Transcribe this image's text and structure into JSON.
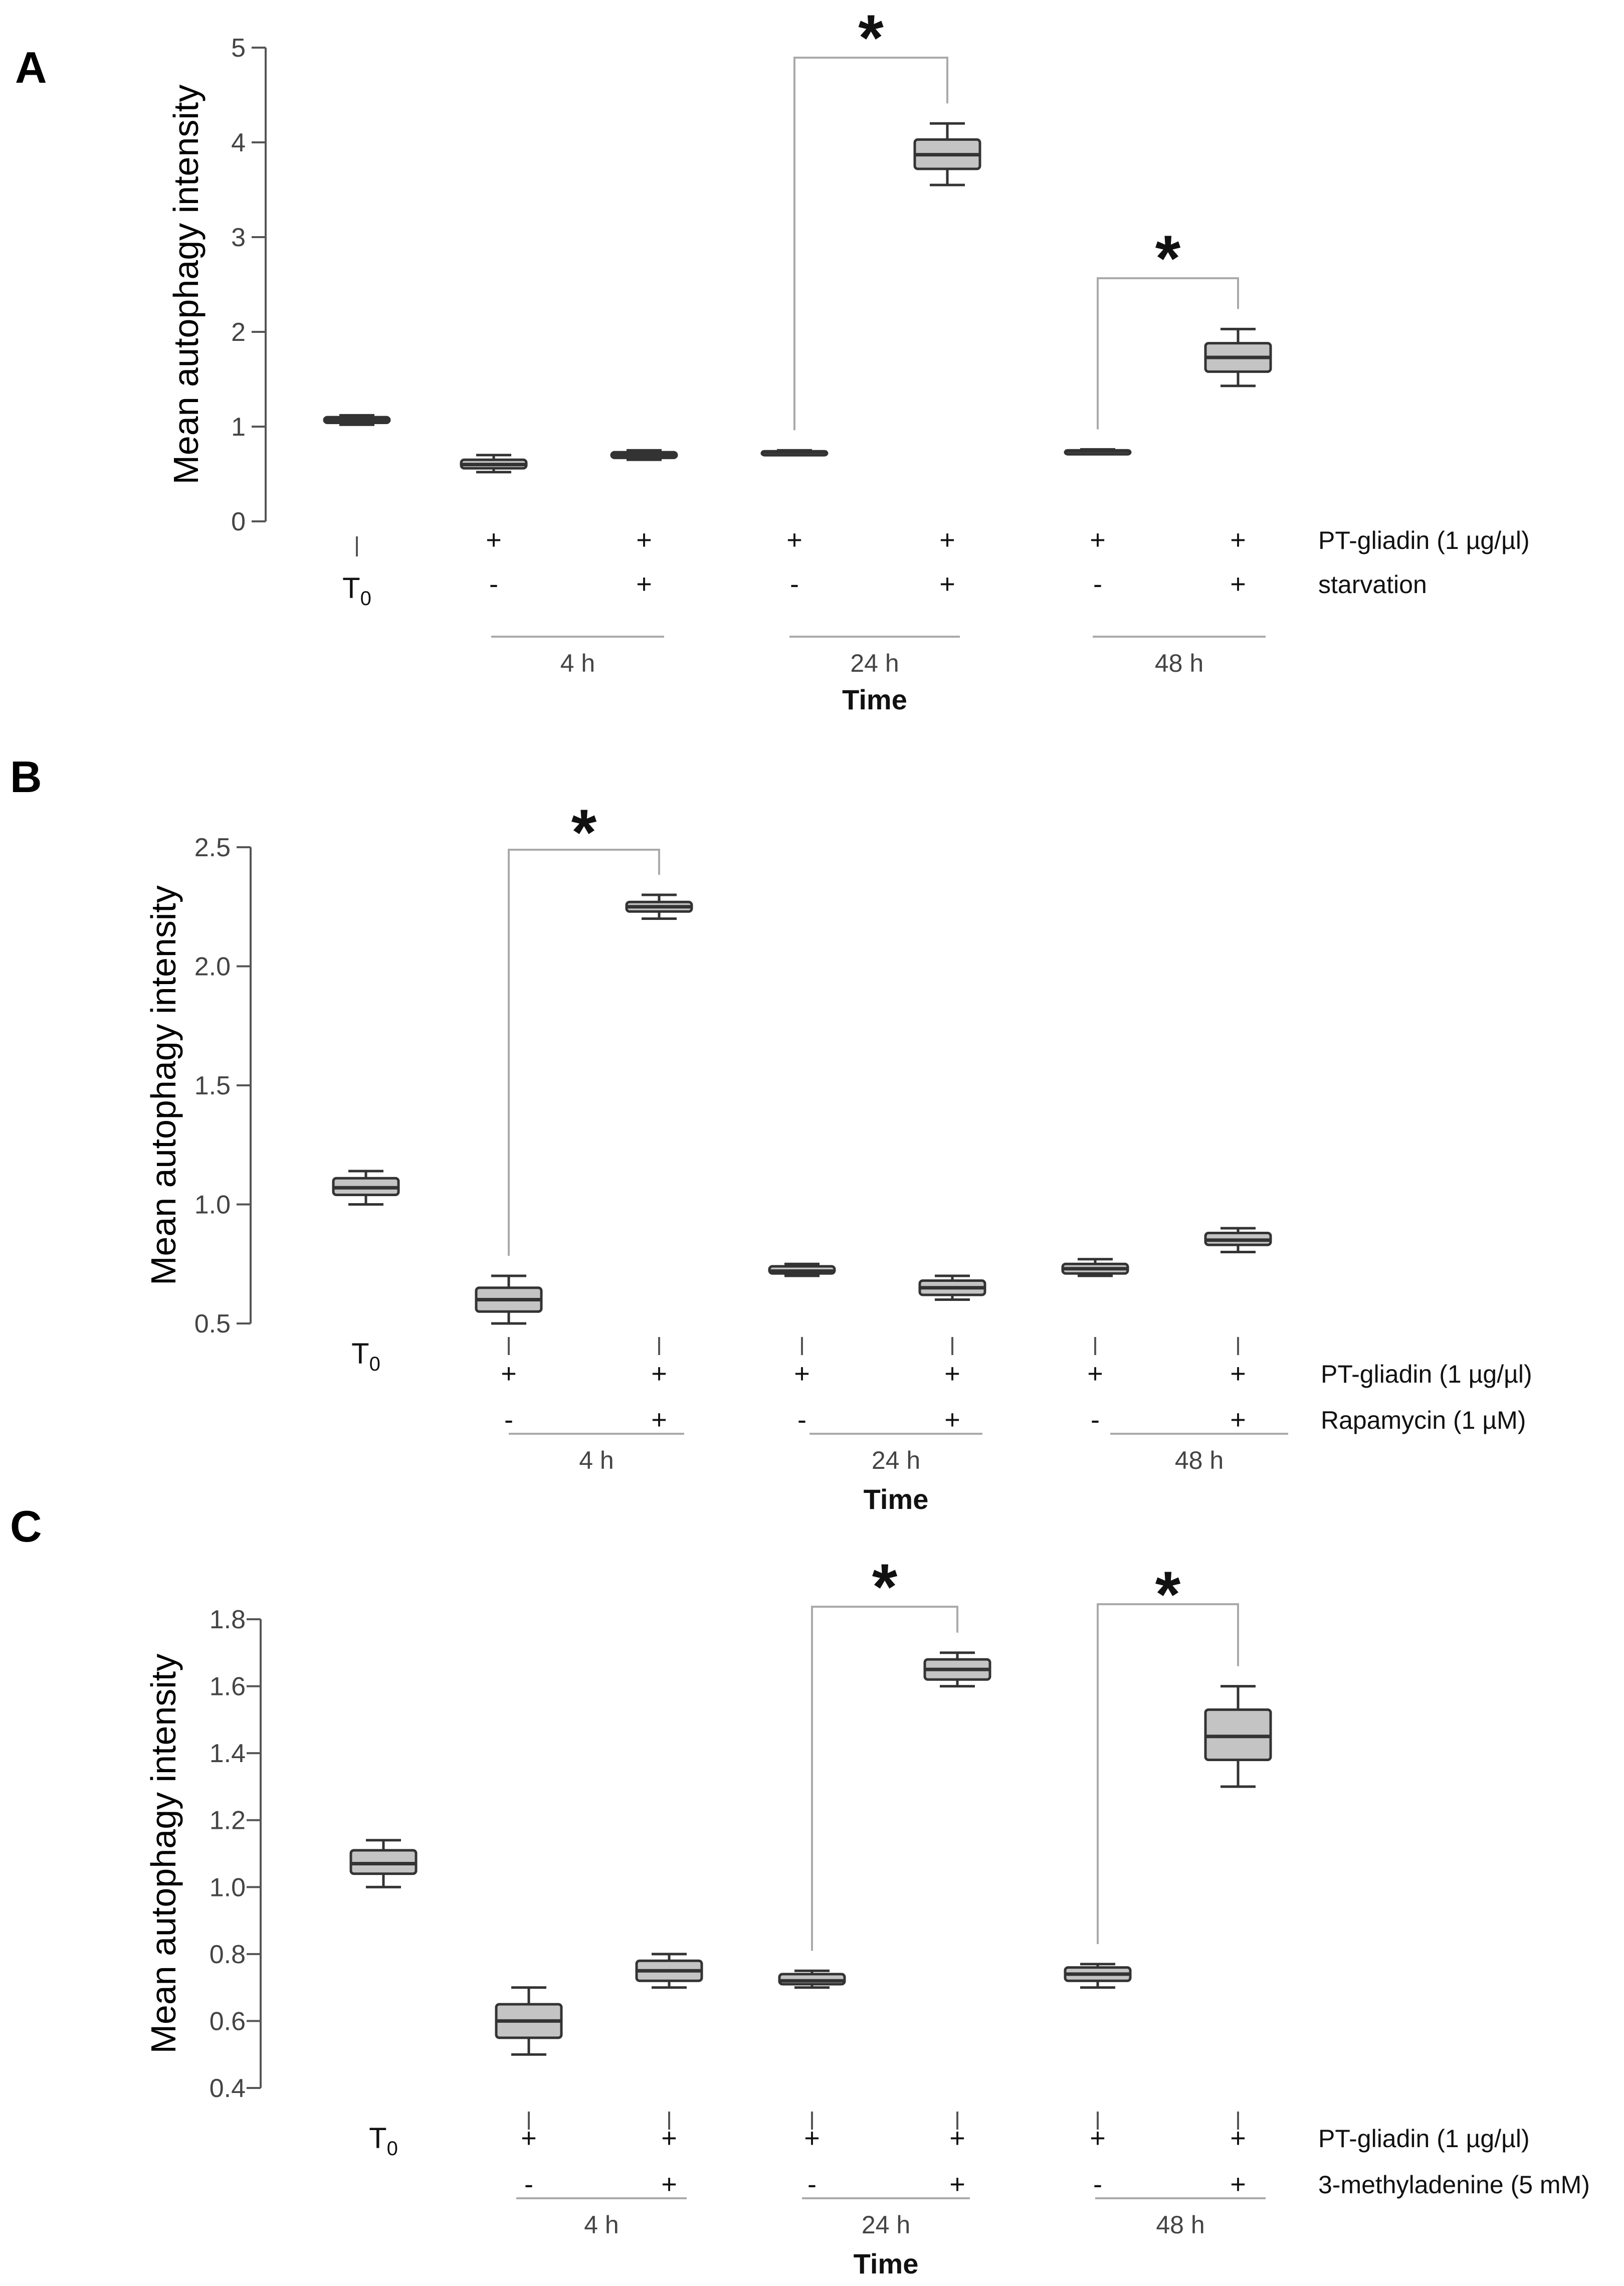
{
  "colors": {
    "box_fill": "#c4c4c4",
    "box_stroke": "#333333",
    "axis": "#555555",
    "bracket": "#aaaaaa"
  },
  "chart_data": [
    {
      "panel": "A",
      "type": "box",
      "ylabel": "Mean autophagy intensity",
      "xlabel": "Time",
      "ylim": [
        0,
        5
      ],
      "yticks": [
        0,
        1,
        2,
        3,
        4,
        5
      ],
      "t0_label": "T",
      "t0_sub": "0",
      "row_labels": [
        "PT-gliadin  (1 µg/µl)",
        "starvation"
      ],
      "time_groups": [
        "4 h",
        "24 h",
        "48 h"
      ],
      "groups": [
        {
          "row1": "",
          "row2": "",
          "min": 1.02,
          "q1": 1.04,
          "median": 1.07,
          "q3": 1.1,
          "max": 1.12
        },
        {
          "row1": "+",
          "row2": "-",
          "min": 0.52,
          "q1": 0.56,
          "median": 0.6,
          "q3": 0.65,
          "max": 0.7
        },
        {
          "row1": "+",
          "row2": "+",
          "min": 0.65,
          "q1": 0.67,
          "median": 0.7,
          "q3": 0.73,
          "max": 0.75
        },
        {
          "row1": "+",
          "row2": "-",
          "min": 0.71,
          "q1": 0.72,
          "median": 0.73,
          "q3": 0.74,
          "max": 0.75
        },
        {
          "row1": "+",
          "row2": "+",
          "min": 3.55,
          "q1": 3.72,
          "median": 3.87,
          "q3": 4.03,
          "max": 4.2
        },
        {
          "row1": "+",
          "row2": "-",
          "min": 0.72,
          "q1": 0.73,
          "median": 0.74,
          "q3": 0.75,
          "max": 0.76
        },
        {
          "row1": "+",
          "row2": "+",
          "min": 1.43,
          "q1": 1.58,
          "median": 1.73,
          "q3": 1.88,
          "max": 2.03
        }
      ],
      "significance": [
        {
          "from": 3,
          "to": 4,
          "label": "*"
        },
        {
          "from": 5,
          "to": 6,
          "label": "*"
        }
      ]
    },
    {
      "panel": "B",
      "type": "box",
      "ylabel": "Mean autophagy intensity",
      "xlabel": "Time",
      "ylim": [
        0.5,
        2.5
      ],
      "yticks": [
        "0.5",
        "1.0",
        "1.5",
        "2.0",
        "2.5"
      ],
      "t0_label": "T",
      "t0_sub": "0",
      "row_labels": [
        "PT-gliadin  (1 µg/µl)",
        "Rapamycin (1 µM)"
      ],
      "time_groups": [
        "4 h",
        "24 h",
        "48 h"
      ],
      "groups": [
        {
          "row1": "",
          "row2": "",
          "min": 1.0,
          "q1": 1.04,
          "median": 1.07,
          "q3": 1.11,
          "max": 1.14
        },
        {
          "row1": "+",
          "row2": "-",
          "min": 0.5,
          "q1": 0.55,
          "median": 0.6,
          "q3": 0.65,
          "max": 0.7
        },
        {
          "row1": "+",
          "row2": "+",
          "min": 2.2,
          "q1": 2.23,
          "median": 2.25,
          "q3": 2.27,
          "max": 2.3
        },
        {
          "row1": "+",
          "row2": "-",
          "min": 0.7,
          "q1": 0.71,
          "median": 0.72,
          "q3": 0.74,
          "max": 0.75
        },
        {
          "row1": "+",
          "row2": "+",
          "min": 0.6,
          "q1": 0.62,
          "median": 0.65,
          "q3": 0.68,
          "max": 0.7
        },
        {
          "row1": "+",
          "row2": "-",
          "min": 0.7,
          "q1": 0.71,
          "median": 0.73,
          "q3": 0.75,
          "max": 0.77
        },
        {
          "row1": "+",
          "row2": "+",
          "min": 0.8,
          "q1": 0.83,
          "median": 0.85,
          "q3": 0.88,
          "max": 0.9
        }
      ],
      "significance": [
        {
          "from": 1,
          "to": 2,
          "label": "*"
        }
      ]
    },
    {
      "panel": "C",
      "type": "box",
      "ylabel": "Mean autophagy intensity",
      "xlabel": "Time",
      "ylim": [
        0.4,
        1.8
      ],
      "yticks": [
        "0.4",
        "0.6",
        "0.8",
        "1.0",
        "1.2",
        "1.4",
        "1.6",
        "1.8"
      ],
      "t0_label": "T",
      "t0_sub": "0",
      "row_labels": [
        "PT-gliadin  (1 µg/µl)",
        "3-methyladenine (5 mM)"
      ],
      "time_groups": [
        "4 h",
        "24 h",
        "48 h"
      ],
      "groups": [
        {
          "row1": "",
          "row2": "",
          "min": 1.0,
          "q1": 1.04,
          "median": 1.07,
          "q3": 1.11,
          "max": 1.14
        },
        {
          "row1": "+",
          "row2": "-",
          "min": 0.5,
          "q1": 0.55,
          "median": 0.6,
          "q3": 0.65,
          "max": 0.7
        },
        {
          "row1": "+",
          "row2": "+",
          "min": 0.7,
          "q1": 0.72,
          "median": 0.75,
          "q3": 0.78,
          "max": 0.8
        },
        {
          "row1": "+",
          "row2": "-",
          "min": 0.7,
          "q1": 0.71,
          "median": 0.72,
          "q3": 0.74,
          "max": 0.75
        },
        {
          "row1": "+",
          "row2": "+",
          "min": 1.6,
          "q1": 1.62,
          "median": 1.65,
          "q3": 1.68,
          "max": 1.7
        },
        {
          "row1": "+",
          "row2": "-",
          "min": 0.7,
          "q1": 0.72,
          "median": 0.74,
          "q3": 0.76,
          "max": 0.77
        },
        {
          "row1": "+",
          "row2": "+",
          "min": 1.3,
          "q1": 1.38,
          "median": 1.45,
          "q3": 1.53,
          "max": 1.6
        }
      ],
      "significance": [
        {
          "from": 3,
          "to": 4,
          "label": "*"
        },
        {
          "from": 5,
          "to": 6,
          "label": "*"
        }
      ]
    }
  ]
}
